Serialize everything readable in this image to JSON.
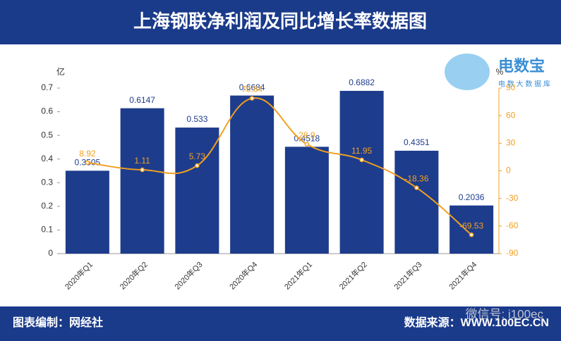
{
  "chart_data": {
    "type": "bar-line",
    "title": "上海钢联净利润及同比增长率数据图",
    "y_label": "亿",
    "y2_label": "%",
    "categories": [
      "2020年Q1",
      "2020年Q2",
      "2020年Q3",
      "2020年Q4",
      "2021年Q1",
      "2021年Q2",
      "2021年Q3",
      "2021年Q4"
    ],
    "series": [
      {
        "type": "bar",
        "color": "#1e3c8c",
        "values": [
          0.3505,
          0.6147,
          0.533,
          0.6684,
          0.4518,
          0.6882,
          0.4351,
          0.2036
        ]
      },
      {
        "type": "line",
        "axis": "y2",
        "color": "#f0a020",
        "values": [
          8.92,
          1.11,
          5.73,
          78.84,
          28.9,
          11.95,
          -18.36,
          -69.53
        ]
      }
    ],
    "ylim": [
      0,
      0.7
    ],
    "yticks": [
      0,
      0.1,
      0.2,
      0.3,
      0.4,
      0.5,
      0.6,
      0.7
    ],
    "y2lim": [
      -90,
      90
    ],
    "y2ticks": [
      -90,
      -60,
      -30,
      0,
      30,
      60,
      90
    ],
    "grid": false
  },
  "footer": {
    "credit": "图表编制：网经社",
    "source": "数据来源：WWW.100EC.CN",
    "watermark": "微信号: i100ec"
  },
  "logo": {
    "name": "电数宝",
    "tagline": "电 数 大 数 据 库"
  }
}
